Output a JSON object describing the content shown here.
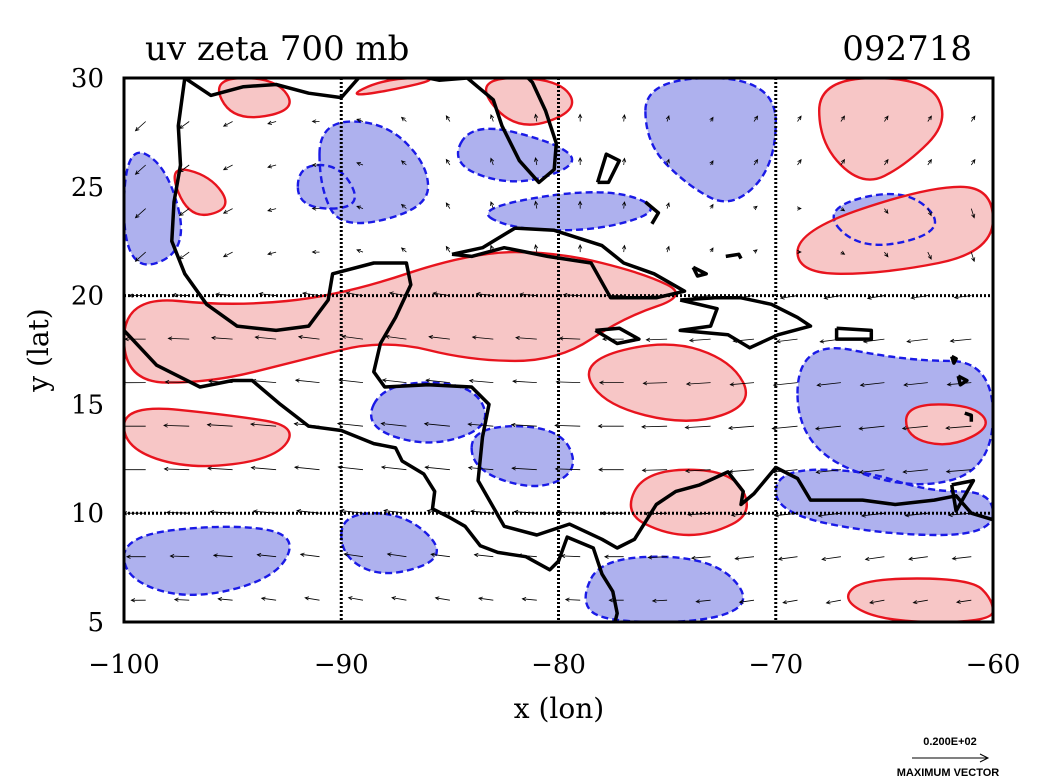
{
  "title": "uv zeta 700 mb",
  "date_label": "092718",
  "xlabel": "x (lon)",
  "ylabel": "y (lat)",
  "colors": {
    "positive_fill": "#f7c6c6",
    "positive_line": "#e8141e",
    "negative_fill": "#aeb1ee",
    "negative_line": "#1a1ae6",
    "coast": "#000000",
    "grid": "#000000",
    "vector": "#000000"
  },
  "chart_data": {
    "type": "map",
    "xlim": [
      -100,
      -60
    ],
    "ylim": [
      5,
      30
    ],
    "x_ticks": [
      {
        "value": -100,
        "label": "−100"
      },
      {
        "value": -90,
        "label": "−90"
      },
      {
        "value": -80,
        "label": "−80"
      },
      {
        "value": -70,
        "label": "−70"
      },
      {
        "value": -60,
        "label": "−60"
      }
    ],
    "y_ticks": [
      {
        "value": 5,
        "label": "5"
      },
      {
        "value": 10,
        "label": "10"
      },
      {
        "value": 15,
        "label": "15"
      },
      {
        "value": 20,
        "label": "20"
      },
      {
        "value": 25,
        "label": "25"
      },
      {
        "value": 30,
        "label": "30"
      }
    ],
    "gridlines_lon": [
      -90,
      -80,
      -70
    ],
    "gridlines_lat": [
      10,
      20
    ],
    "positive_regions": [
      [
        [
          -96,
          30
        ],
        [
          -93,
          30
        ],
        [
          -92,
          28.5
        ],
        [
          -95,
          28
        ]
      ],
      [
        [
          -90,
          29
        ],
        [
          -85,
          30
        ],
        [
          -88,
          30
        ]
      ],
      [
        [
          -84,
          30
        ],
        [
          -80,
          30
        ],
        [
          -79,
          28.5
        ],
        [
          -82,
          27.5
        ]
      ],
      [
        [
          -68,
          30
        ],
        [
          -63,
          30
        ],
        [
          -62,
          28
        ],
        [
          -64,
          26
        ],
        [
          -66,
          25
        ],
        [
          -68,
          27
        ]
      ],
      [
        [
          -98,
          26
        ],
        [
          -96,
          25.5
        ],
        [
          -95,
          24
        ],
        [
          -97,
          23.5
        ]
      ],
      [
        [
          -69,
          23
        ],
        [
          -63,
          25
        ],
        [
          -60,
          25
        ],
        [
          -60,
          22
        ],
        [
          -65,
          21
        ],
        [
          -69,
          21
        ]
      ],
      [
        [
          -100,
          20
        ],
        [
          -95,
          19.5
        ],
        [
          -90,
          20
        ],
        [
          -84,
          22
        ],
        [
          -80,
          22
        ],
        [
          -76,
          21
        ],
        [
          -74,
          20
        ],
        [
          -77,
          19
        ],
        [
          -80,
          17
        ],
        [
          -84,
          17
        ],
        [
          -88,
          18
        ],
        [
          -92,
          17
        ],
        [
          -96,
          16
        ],
        [
          -100,
          16
        ]
      ],
      [
        [
          -100,
          15
        ],
        [
          -95,
          14.5
        ],
        [
          -92,
          14
        ],
        [
          -93,
          12.5
        ],
        [
          -97,
          12
        ],
        [
          -100,
          13
        ]
      ],
      [
        [
          -79,
          17
        ],
        [
          -75,
          18
        ],
        [
          -72,
          17
        ],
        [
          -71,
          15
        ],
        [
          -74,
          14
        ],
        [
          -78,
          15
        ]
      ],
      [
        [
          -76,
          12
        ],
        [
          -72,
          12
        ],
        [
          -71,
          10
        ],
        [
          -73,
          9
        ],
        [
          -75,
          9
        ],
        [
          -77,
          10
        ]
      ],
      [
        [
          -66,
          7
        ],
        [
          -61,
          7
        ],
        [
          -60,
          6
        ],
        [
          -60,
          5
        ],
        [
          -65,
          5
        ],
        [
          -67,
          6
        ]
      ],
      [
        [
          -64,
          15
        ],
        [
          -61,
          15
        ],
        [
          -60,
          14
        ],
        [
          -62,
          13
        ],
        [
          -64,
          13.5
        ]
      ]
    ],
    "negative_regions": [
      [
        [
          -100,
          27
        ],
        [
          -98,
          26
        ],
        [
          -97,
          22
        ],
        [
          -100,
          21
        ]
      ],
      [
        [
          -91,
          28
        ],
        [
          -88,
          28
        ],
        [
          -86,
          26
        ],
        [
          -86,
          24
        ],
        [
          -90,
          23
        ],
        [
          -91,
          25
        ]
      ],
      [
        [
          -84,
          28
        ],
        [
          -80,
          27
        ],
        [
          -79,
          26
        ],
        [
          -82,
          25
        ],
        [
          -85,
          26
        ]
      ],
      [
        [
          -76,
          30
        ],
        [
          -70,
          30
        ],
        [
          -70,
          26
        ],
        [
          -72,
          24
        ],
        [
          -74,
          25
        ],
        [
          -76,
          27
        ]
      ],
      [
        [
          -68,
          24
        ],
        [
          -64,
          25
        ],
        [
          -62,
          23
        ],
        [
          -66,
          22
        ]
      ],
      [
        [
          -84,
          24
        ],
        [
          -78,
          25
        ],
        [
          -75,
          24
        ],
        [
          -78,
          23
        ],
        [
          -82,
          23
        ]
      ],
      [
        [
          -69,
          18
        ],
        [
          -64,
          17
        ],
        [
          -60,
          17
        ],
        [
          -60,
          12
        ],
        [
          -64,
          11
        ],
        [
          -69,
          13
        ]
      ],
      [
        [
          -88,
          16
        ],
        [
          -84,
          16
        ],
        [
          -83,
          14
        ],
        [
          -86,
          13
        ],
        [
          -89,
          14
        ]
      ],
      [
        [
          -84,
          14
        ],
        [
          -80,
          14
        ],
        [
          -79,
          12
        ],
        [
          -81,
          11
        ],
        [
          -84,
          12
        ]
      ],
      [
        [
          -78,
          8
        ],
        [
          -73,
          8
        ],
        [
          -71,
          6
        ],
        [
          -73,
          5
        ],
        [
          -78,
          5
        ],
        [
          -79,
          6
        ]
      ],
      [
        [
          -100,
          9
        ],
        [
          -95,
          9.5
        ],
        [
          -92,
          9
        ],
        [
          -93,
          7
        ],
        [
          -97,
          6
        ],
        [
          -100,
          7
        ]
      ],
      [
        [
          -90,
          10
        ],
        [
          -87,
          10
        ],
        [
          -85,
          8
        ],
        [
          -88,
          7
        ],
        [
          -90,
          8
        ]
      ],
      [
        [
          -70,
          12
        ],
        [
          -66,
          12
        ],
        [
          -63,
          11
        ],
        [
          -60,
          11
        ],
        [
          -60,
          9
        ],
        [
          -65,
          9
        ],
        [
          -70,
          10
        ]
      ],
      [
        [
          -92,
          26
        ],
        [
          -90,
          26
        ],
        [
          -89,
          24
        ],
        [
          -92,
          24
        ]
      ]
    ],
    "coastlines": [
      [
        [
          -97.2,
          30
        ],
        [
          -96,
          29.2
        ],
        [
          -94.5,
          29.6
        ],
        [
          -93,
          29.7
        ],
        [
          -91.5,
          29.3
        ],
        [
          -90,
          29.1
        ],
        [
          -89.2,
          30
        ],
        [
          -89.4,
          30.2
        ]
      ],
      [
        [
          -87.5,
          30.3
        ],
        [
          -85.5,
          29.9
        ],
        [
          -84.2,
          30
        ],
        [
          -83,
          29
        ],
        [
          -82.6,
          27.8
        ],
        [
          -81.8,
          26.2
        ],
        [
          -80.9,
          25.2
        ],
        [
          -80.2,
          25.8
        ],
        [
          -80.1,
          27
        ],
        [
          -80.6,
          28.5
        ],
        [
          -81.2,
          29.8
        ],
        [
          -81.4,
          30
        ]
      ],
      [
        [
          -97.2,
          30
        ],
        [
          -97.5,
          27.8
        ],
        [
          -97.4,
          26
        ],
        [
          -97.7,
          24.3
        ],
        [
          -97.8,
          22.5
        ],
        [
          -97.2,
          21
        ],
        [
          -96.2,
          19.6
        ],
        [
          -94.8,
          18.6
        ],
        [
          -93,
          18.4
        ],
        [
          -91.5,
          18.6
        ],
        [
          -90.6,
          19.8
        ],
        [
          -90.4,
          21
        ],
        [
          -88.5,
          21.5
        ],
        [
          -87,
          21.5
        ],
        [
          -86.8,
          20.5
        ],
        [
          -87.5,
          19
        ],
        [
          -88.2,
          17.8
        ],
        [
          -88.5,
          16.5
        ],
        [
          -88,
          15.8
        ],
        [
          -86,
          15.9
        ],
        [
          -84,
          15.8
        ],
        [
          -83.2,
          15
        ],
        [
          -83.5,
          13.5
        ],
        [
          -83.7,
          11.5
        ],
        [
          -82.5,
          9.4
        ],
        [
          -81,
          9
        ],
        [
          -79.5,
          9.5
        ],
        [
          -78,
          8.8
        ],
        [
          -77.3,
          8.4
        ],
        [
          -76.5,
          8.8
        ],
        [
          -75.5,
          10.4
        ],
        [
          -74.6,
          11
        ],
        [
          -73.5,
          11.3
        ],
        [
          -72.2,
          11.9
        ],
        [
          -71.5,
          11
        ],
        [
          -71.6,
          10.4
        ],
        [
          -71,
          10.9
        ],
        [
          -70,
          12.1
        ],
        [
          -69,
          11.6
        ],
        [
          -68.4,
          10.6
        ],
        [
          -66,
          10.6
        ],
        [
          -64.5,
          10.4
        ],
        [
          -62.7,
          10.6
        ],
        [
          -61.7,
          10.8
        ],
        [
          -61,
          10
        ],
        [
          -60,
          9.7
        ]
      ],
      [
        [
          -100,
          18.4
        ],
        [
          -98.5,
          16.8
        ],
        [
          -96.5,
          15.8
        ],
        [
          -95,
          16.1
        ],
        [
          -94.1,
          16.1
        ],
        [
          -92.8,
          15
        ],
        [
          -91.5,
          14
        ],
        [
          -90,
          13.8
        ],
        [
          -88.5,
          13.2
        ],
        [
          -87.5,
          13
        ],
        [
          -87.2,
          12.4
        ],
        [
          -86.2,
          11.8
        ],
        [
          -85.7,
          11
        ],
        [
          -85.8,
          10.2
        ],
        [
          -85,
          9.8
        ],
        [
          -84.3,
          9.4
        ],
        [
          -83.6,
          8.5
        ],
        [
          -82.8,
          8.2
        ],
        [
          -81.5,
          8
        ],
        [
          -80.4,
          7.4
        ],
        [
          -80,
          7.8
        ],
        [
          -79.6,
          8.9
        ],
        [
          -78.4,
          8.4
        ],
        [
          -78,
          7.2
        ],
        [
          -77.5,
          6.4
        ],
        [
          -77.3,
          5.4
        ],
        [
          -77.4,
          5
        ]
      ],
      [
        [
          -84.9,
          21.9
        ],
        [
          -83.5,
          22.2
        ],
        [
          -82,
          23.1
        ],
        [
          -80.2,
          23
        ],
        [
          -78,
          22.3
        ],
        [
          -77,
          21.5
        ],
        [
          -75.6,
          21
        ],
        [
          -74.2,
          20.2
        ],
        [
          -75.5,
          19.9
        ],
        [
          -77.6,
          19.9
        ],
        [
          -78.5,
          21.5
        ],
        [
          -80.5,
          21.8
        ],
        [
          -82.5,
          22.2
        ],
        [
          -84,
          21.8
        ],
        [
          -84.9,
          21.9
        ]
      ],
      [
        [
          -78.3,
          18.4
        ],
        [
          -77.2,
          18.5
        ],
        [
          -76.3,
          18
        ],
        [
          -77.3,
          17.8
        ],
        [
          -78.3,
          18.4
        ]
      ],
      [
        [
          -74.4,
          19.8
        ],
        [
          -72.8,
          19.9
        ],
        [
          -71.6,
          19.9
        ],
        [
          -70.2,
          19.6
        ],
        [
          -69,
          19
        ],
        [
          -68.4,
          18.6
        ],
        [
          -69.9,
          18.2
        ],
        [
          -71.2,
          17.6
        ],
        [
          -72.2,
          18.2
        ],
        [
          -74.4,
          18.4
        ],
        [
          -73,
          18.6
        ],
        [
          -72.7,
          19.4
        ],
        [
          -74.4,
          19.8
        ]
      ],
      [
        [
          -67.2,
          18.5
        ],
        [
          -65.6,
          18.4
        ],
        [
          -65.6,
          18
        ],
        [
          -67.2,
          18
        ],
        [
          -67.2,
          18.5
        ]
      ],
      [
        [
          -61.9,
          17.2
        ],
        [
          -61.7,
          17.1
        ],
        [
          -61.8,
          16.9
        ],
        [
          -61.9,
          17.2
        ]
      ],
      [
        [
          -61.6,
          16.3
        ],
        [
          -61.2,
          16.1
        ],
        [
          -61.5,
          15.9
        ],
        [
          -61.6,
          16.3
        ]
      ],
      [
        [
          -61.3,
          14.6
        ],
        [
          -61,
          14.5
        ],
        [
          -61,
          14.2
        ]
      ],
      [
        [
          -78.2,
          25.2
        ],
        [
          -77.8,
          26.5
        ],
        [
          -77.2,
          26.2
        ],
        [
          -77.7,
          25.2
        ],
        [
          -78.2,
          25.2
        ]
      ],
      [
        [
          -76,
          24.3
        ],
        [
          -75.4,
          23.8
        ],
        [
          -75.7,
          23.3
        ]
      ],
      [
        [
          -73.8,
          21.3
        ],
        [
          -73.2,
          21
        ],
        [
          -73.6,
          20.9
        ],
        [
          -73.8,
          21.3
        ]
      ],
      [
        [
          -72.3,
          21.8
        ],
        [
          -71.7,
          21.9
        ],
        [
          -71.6,
          21.7
        ]
      ],
      [
        [
          -61.9,
          11.3
        ],
        [
          -60.9,
          11.5
        ],
        [
          -61.7,
          10.1
        ],
        [
          -61.9,
          11.3
        ]
      ]
    ],
    "vectors": {
      "lon_range": [
        -99,
        -61
      ],
      "lat_range": [
        6,
        29
      ],
      "step_deg": 2,
      "reference_speed": "0.200E+02",
      "reference_caption": "MAXIMUM VECTOR"
    }
  }
}
